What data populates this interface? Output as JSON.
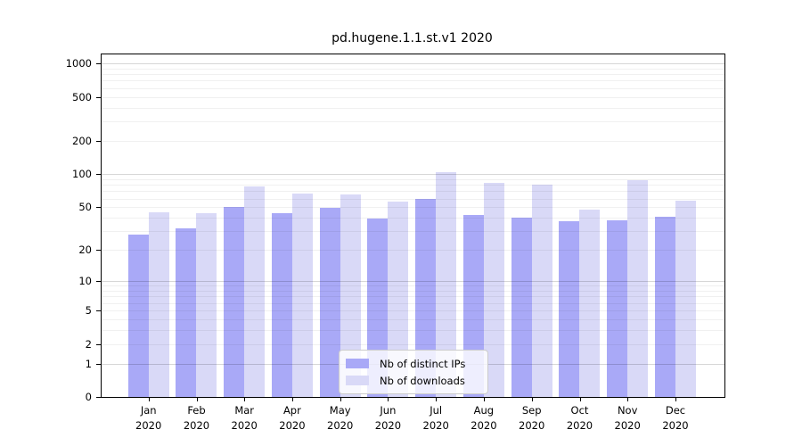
{
  "chart_data": {
    "type": "bar",
    "title": "pd.hugene.1.1.st.v1 2020",
    "categories": [
      "Jan",
      "Feb",
      "Mar",
      "Apr",
      "May",
      "Jun",
      "Jul",
      "Aug",
      "Sep",
      "Oct",
      "Nov",
      "Dec"
    ],
    "year_label": "2020",
    "series": [
      {
        "name": "Nb of distinct IPs",
        "color": "#a9a9f7",
        "values": [
          28,
          32,
          50,
          44,
          49,
          39,
          59,
          42,
          40,
          37,
          38,
          41
        ]
      },
      {
        "name": "Nb of downloads",
        "color": "#d9d9f7",
        "values": [
          45,
          44,
          77,
          66,
          65,
          56,
          105,
          84,
          80,
          47,
          88,
          57
        ]
      }
    ],
    "y_ticks": [
      0,
      1,
      2,
      5,
      10,
      20,
      50,
      100,
      200,
      500,
      1000
    ],
    "yscale": "log1p",
    "ylim": [
      0,
      1200
    ],
    "grid": true,
    "legend_position": "bottom-center",
    "colors": {
      "axis": "#000000",
      "grid_minor": "#efefef",
      "grid_major": "#d4d4d4",
      "legend_border": "#cccccc",
      "background": "#ffffff"
    }
  }
}
